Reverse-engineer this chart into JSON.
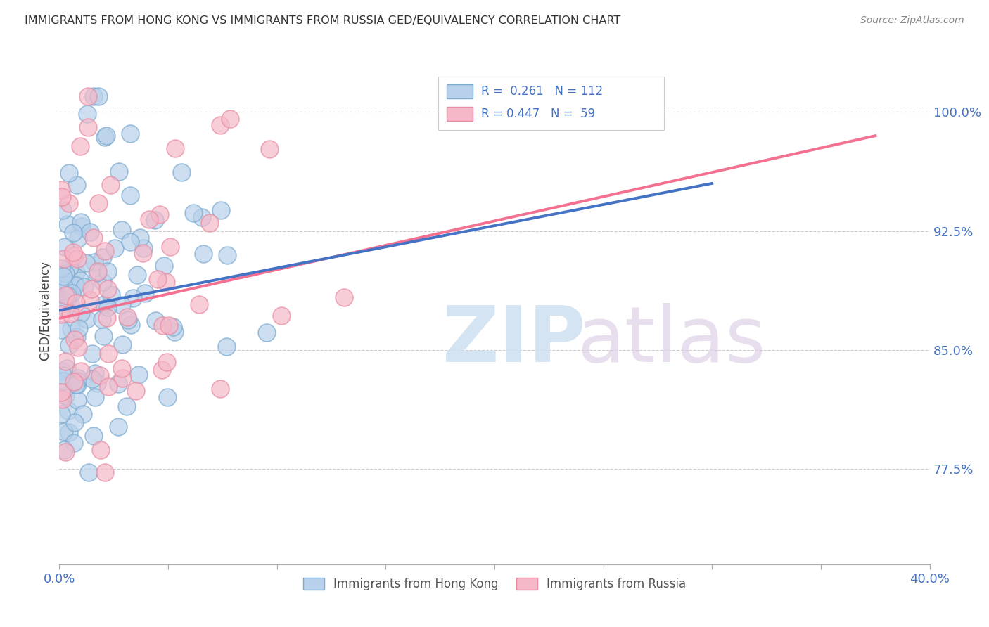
{
  "title": "IMMIGRANTS FROM HONG KONG VS IMMIGRANTS FROM RUSSIA GED/EQUIVALENCY CORRELATION CHART",
  "source": "Source: ZipAtlas.com",
  "ylabel": "GED/Equivalency",
  "ytick_labels": [
    "77.5%",
    "85.0%",
    "92.5%",
    "100.0%"
  ],
  "ytick_values": [
    0.775,
    0.85,
    0.925,
    1.0
  ],
  "xlim": [
    0.0,
    0.4
  ],
  "ylim": [
    0.715,
    1.035
  ],
  "legend_text1": "R =  0.261   N = 112",
  "legend_text2": "R = 0.447   N =  59",
  "color_hk_face": "#b8d0ea",
  "color_hk_edge": "#7aaad0",
  "color_ru_face": "#f5b8c8",
  "color_ru_edge": "#e88aa0",
  "color_hk_line": "#4472c4",
  "color_ru_line": "#f47090",
  "color_axis_text": "#4472c4",
  "color_grid": "#cccccc",
  "hk_seed": 42,
  "ru_seed": 99,
  "n_hk": 112,
  "n_ru": 59,
  "hk_line_x0": 0.0,
  "hk_line_x1": 0.3,
  "hk_line_y0": 0.875,
  "hk_line_y1": 0.955,
  "ru_line_x0": 0.0,
  "ru_line_x1": 0.375,
  "ru_line_y0": 0.87,
  "ru_line_y1": 0.985
}
